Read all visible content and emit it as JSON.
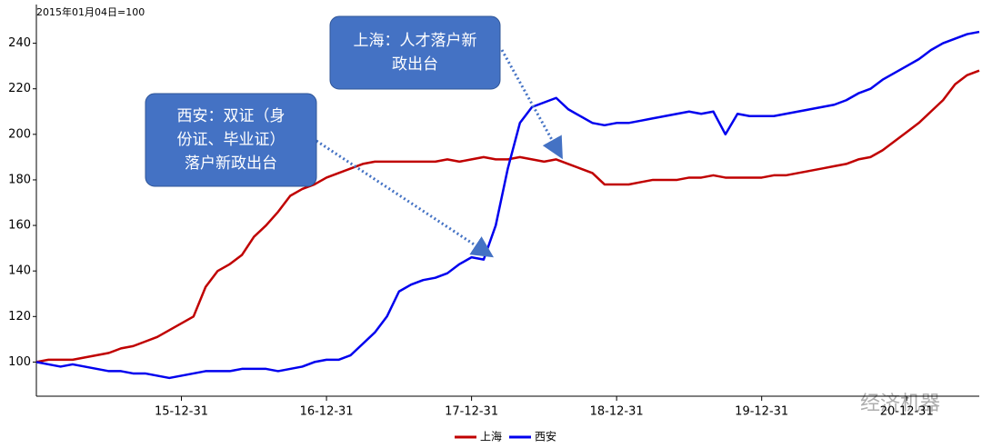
{
  "chart_data": {
    "type": "line",
    "subtitle": "2015年01月04日=100",
    "categories": [
      null,
      null,
      null,
      null,
      null,
      null,
      null,
      null,
      null,
      null,
      null,
      null,
      "15-12-31",
      null,
      null,
      null,
      null,
      null,
      null,
      null,
      null,
      null,
      null,
      null,
      "16-12-31",
      null,
      null,
      null,
      null,
      null,
      null,
      null,
      null,
      null,
      null,
      null,
      "17-12-31",
      null,
      null,
      null,
      null,
      null,
      null,
      null,
      null,
      null,
      null,
      null,
      "18-12-31",
      null,
      null,
      null,
      null,
      null,
      null,
      null,
      null,
      null,
      null,
      null,
      "19-12-31",
      null,
      null,
      null,
      null,
      null,
      null,
      null,
      null,
      null,
      null,
      null,
      "20-12-31",
      null,
      null,
      null,
      null,
      null,
      null
    ],
    "series": [
      {
        "name": "上海",
        "color": "#c00000",
        "values": [
          100,
          101,
          101,
          101,
          102,
          103,
          104,
          106,
          107,
          109,
          111,
          114,
          117,
          120,
          133,
          140,
          143,
          147,
          155,
          160,
          166,
          173,
          176,
          178,
          181,
          183,
          185,
          187,
          188,
          188,
          188,
          188,
          188,
          188,
          189,
          188,
          189,
          190,
          189,
          189,
          190,
          189,
          188,
          189,
          187,
          185,
          183,
          178,
          178,
          178,
          179,
          180,
          180,
          180,
          181,
          181,
          182,
          181,
          181,
          181,
          181,
          182,
          182,
          183,
          184,
          185,
          186,
          187,
          189,
          190,
          193,
          197,
          201,
          205,
          210,
          215,
          222,
          226,
          228
        ]
      },
      {
        "name": "西安",
        "color": "#0000ee",
        "values": [
          100,
          99,
          98,
          99,
          98,
          97,
          96,
          96,
          95,
          95,
          94,
          93,
          94,
          95,
          96,
          96,
          96,
          97,
          97,
          97,
          96,
          97,
          98,
          100,
          101,
          101,
          103,
          108,
          113,
          120,
          131,
          134,
          136,
          137,
          139,
          143,
          146,
          145,
          160,
          185,
          205,
          212,
          214,
          216,
          211,
          208,
          205,
          204,
          205,
          205,
          206,
          207,
          208,
          209,
          210,
          209,
          210,
          200,
          209,
          208,
          208,
          208,
          209,
          210,
          211,
          212,
          213,
          215,
          218,
          220,
          224,
          227,
          230,
          233,
          237,
          240,
          242,
          244,
          245
        ]
      }
    ],
    "ylim": [
      85,
      257
    ],
    "yticks": [
      100,
      120,
      140,
      160,
      180,
      200,
      220,
      240
    ],
    "annotations": [
      {
        "lines": [
          "西安：双证（身",
          "份证、毕业证）",
          "落户新政出台"
        ]
      },
      {
        "lines": [
          "上海：人才落户新",
          "政出台"
        ]
      }
    ],
    "watermark": "经济机器"
  }
}
